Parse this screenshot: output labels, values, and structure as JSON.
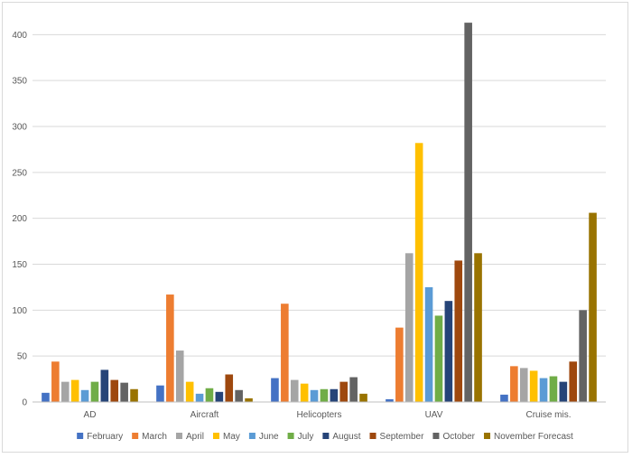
{
  "chart_data": {
    "type": "bar",
    "title": "",
    "xlabel": "",
    "ylabel": "",
    "ylim": [
      0,
      420
    ],
    "yticks": [
      0,
      50,
      100,
      150,
      200,
      250,
      300,
      350,
      400
    ],
    "grid": true,
    "legend_position": "bottom",
    "categories": [
      "AD",
      "Aircraft",
      "Helicopters",
      "UAV",
      "Cruise mis."
    ],
    "series": [
      {
        "name": "February",
        "color": "#4472c4",
        "values": [
          10,
          18,
          26,
          3,
          8
        ]
      },
      {
        "name": "March",
        "color": "#ed7d31",
        "values": [
          44,
          117,
          107,
          81,
          39
        ]
      },
      {
        "name": "April",
        "color": "#a5a5a5",
        "values": [
          22,
          56,
          24,
          162,
          37
        ]
      },
      {
        "name": "May",
        "color": "#ffc000",
        "values": [
          24,
          22,
          20,
          282,
          34
        ]
      },
      {
        "name": "June",
        "color": "#5b9bd5",
        "values": [
          13,
          9,
          13,
          125,
          26
        ]
      },
      {
        "name": "July",
        "color": "#70ad47",
        "values": [
          22,
          15,
          14,
          94,
          28
        ]
      },
      {
        "name": "August",
        "color": "#264478",
        "values": [
          35,
          11,
          14,
          110,
          22
        ]
      },
      {
        "name": "September",
        "color": "#9e480e",
        "values": [
          24,
          30,
          22,
          154,
          44
        ]
      },
      {
        "name": "October",
        "color": "#636363",
        "values": [
          21,
          13,
          27,
          413,
          100
        ]
      },
      {
        "name": "November Forecast",
        "color": "#997300",
        "values": [
          14,
          4,
          9,
          162,
          206
        ]
      }
    ]
  }
}
